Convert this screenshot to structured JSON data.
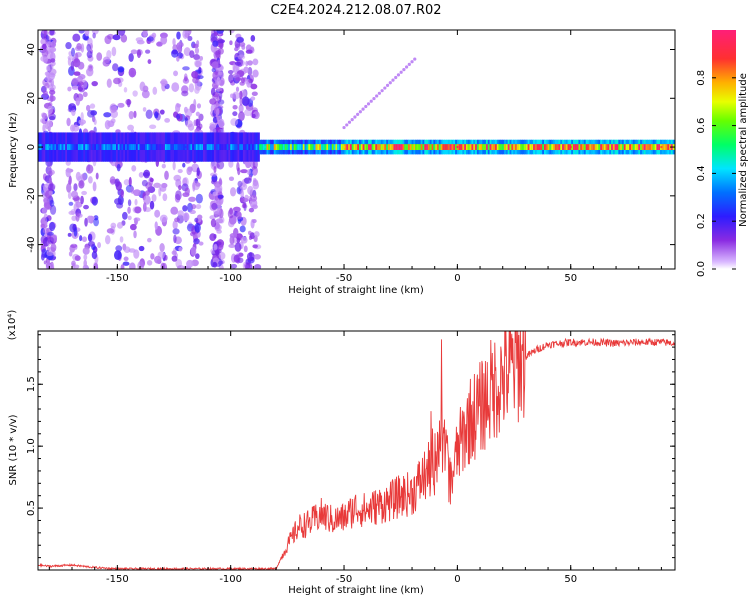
{
  "title": "C2E4.2024.212.08.07.R02",
  "chart_data": [
    {
      "type": "heatmap",
      "title": "C2E4.2024.212.08.07.R02",
      "xlabel": "Height of straight line (km)",
      "ylabel": "Frequency (Hz)",
      "xlim": [
        -185,
        96
      ],
      "ylim": [
        -50,
        48
      ],
      "xticks": [
        -150,
        -100,
        -50,
        0,
        50
      ],
      "yticks": [
        -40,
        -20,
        0,
        20,
        40
      ],
      "colorbar": {
        "label": "Normalized spectral amplitude",
        "range": [
          0,
          1
        ],
        "ticks": [
          "0.0",
          "0.2",
          "0.4",
          "0.6",
          "0.8"
        ],
        "colormap": "rainbow (violet → blue → cyan → green → yellow → red)"
      },
      "description_points": [
        {
          "x": -180,
          "y": 0,
          "amplitude": 0.35
        },
        {
          "x": -120,
          "y": 0,
          "amplitude": 0.25
        },
        {
          "x": -85,
          "y": 0,
          "amplitude": 0.45
        },
        {
          "x": -50,
          "y": 0,
          "amplitude": 0.75
        },
        {
          "x": 0,
          "y": 0,
          "amplitude": 0.95
        },
        {
          "x": 50,
          "y": 0,
          "amplitude": 0.9
        },
        {
          "x": 90,
          "y": 0,
          "amplitude": 0.85
        }
      ]
    },
    {
      "type": "line",
      "xlabel": "Height of straight line (km)",
      "ylabel": "SNR (10 * v/v)",
      "multiplier": "(x10⁴)",
      "xlim": [
        -185,
        96
      ],
      "ylim": [
        0,
        1.93
      ],
      "xticks": [
        -150,
        -100,
        -50,
        0,
        50
      ],
      "yticks": [
        "0.5",
        "1.0",
        "1.5"
      ],
      "series": [
        {
          "color": "#e83a3a",
          "x": [
            -185,
            -180,
            -170,
            -160,
            -150,
            -140,
            -130,
            -120,
            -110,
            -100,
            -90,
            -80,
            -75,
            -70,
            -65,
            -60,
            -55,
            -50,
            -45,
            -40,
            -35,
            -30,
            -25,
            -20,
            -15,
            -10,
            -8,
            -5,
            -3,
            0,
            5,
            10,
            15,
            20,
            25,
            30,
            35,
            40,
            50,
            60,
            70,
            80,
            90,
            96
          ],
          "y": [
            0.04,
            0.03,
            0.04,
            0.02,
            0.01,
            0.01,
            0.01,
            0.01,
            0.01,
            0.01,
            0.01,
            0.01,
            0.2,
            0.35,
            0.38,
            0.45,
            0.4,
            0.42,
            0.5,
            0.48,
            0.52,
            0.55,
            0.6,
            0.62,
            0.75,
            0.85,
            1.1,
            0.9,
            0.7,
            0.95,
            1.2,
            1.3,
            1.45,
            1.55,
            1.65,
            1.72,
            1.78,
            1.82,
            1.84,
            1.84,
            1.83,
            1.84,
            1.84,
            1.83
          ]
        }
      ]
    }
  ]
}
